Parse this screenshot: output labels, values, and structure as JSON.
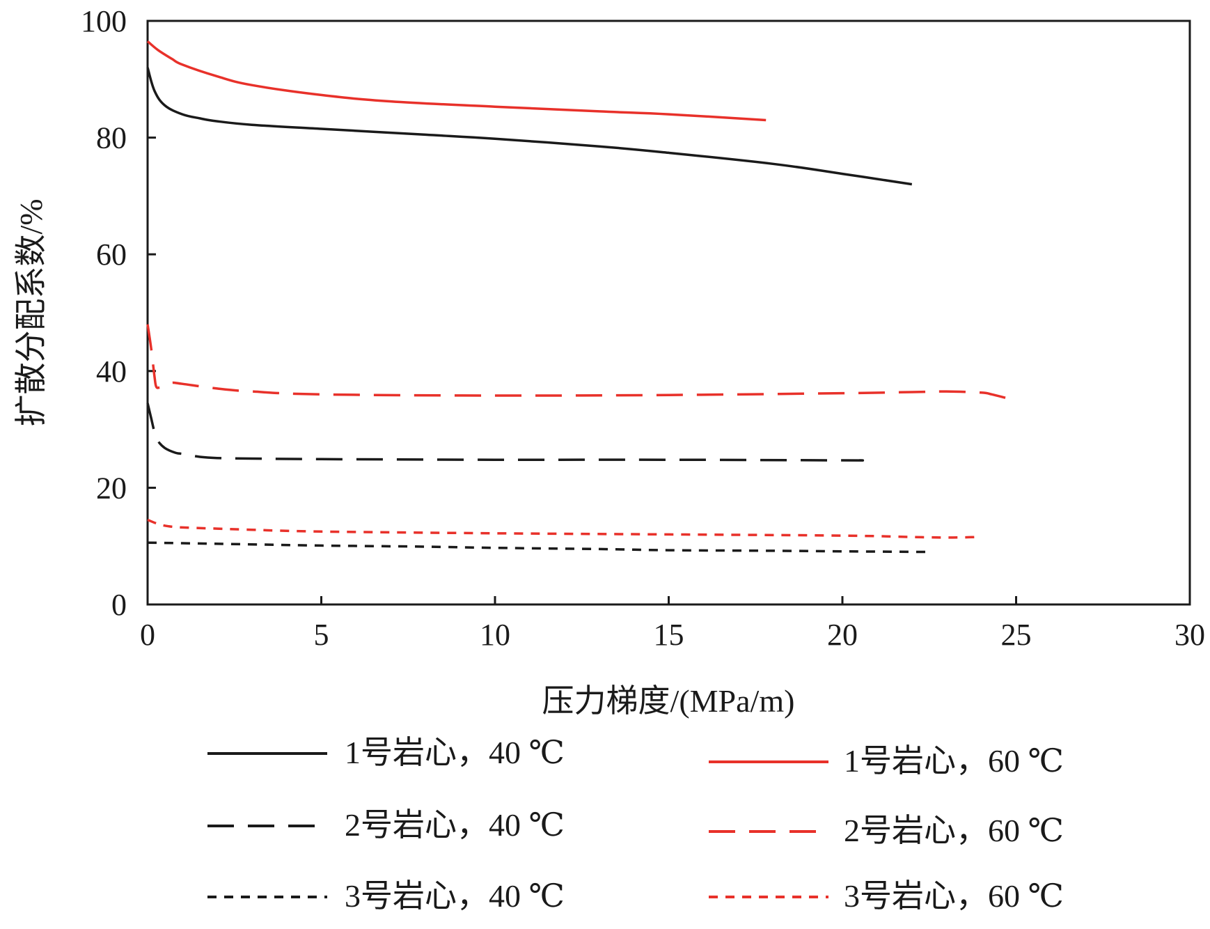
{
  "chart_data": {
    "type": "line",
    "title": "",
    "xlabel": "压力梯度/(MPa/m)",
    "ylabel": "扩散分配系数/%",
    "xlim": [
      0,
      30
    ],
    "ylim": [
      0,
      100
    ],
    "xticks": [
      "0",
      "5",
      "10",
      "15",
      "20",
      "25",
      "30"
    ],
    "yticks": [
      "0",
      "20",
      "40",
      "60",
      "80",
      "100"
    ],
    "grid": false,
    "legend_position": "bottom",
    "colors": {
      "black": "#1a1a1a",
      "red": "#e8312a"
    },
    "series": [
      {
        "name": "1号岩心，40 ℃",
        "color": "#1a1a1a",
        "dash": "solid",
        "x": [
          0,
          0.2,
          0.5,
          1,
          1.5,
          2,
          3,
          5,
          8,
          10,
          13,
          15,
          18,
          20,
          22
        ],
        "y": [
          92,
          88,
          85.5,
          84,
          83.3,
          82.8,
          82.2,
          81.5,
          80.5,
          79.8,
          78.5,
          77.4,
          75.5,
          73.8,
          72
        ]
      },
      {
        "name": "1号岩心，60 ℃",
        "color": "#e8312a",
        "dash": "solid",
        "x": [
          0,
          0.3,
          0.7,
          1,
          2,
          3,
          5,
          7,
          10,
          13,
          15,
          17.8
        ],
        "y": [
          96.5,
          95,
          93.5,
          92.5,
          90.5,
          89,
          87.3,
          86.2,
          85.3,
          84.5,
          84,
          83
        ]
      },
      {
        "name": "2号岩心，40 ℃",
        "color": "#1a1a1a",
        "dash": "long",
        "x": [
          0,
          0.1,
          0.2,
          0.3,
          0.5,
          0.8,
          1,
          1.5,
          2,
          3,
          5,
          10,
          15,
          20,
          20.5
        ],
        "y": [
          34.5,
          32,
          29.5,
          28,
          26.8,
          26,
          25.8,
          25.3,
          25.1,
          25,
          24.9,
          24.8,
          24.8,
          24.7,
          24.7
        ]
      },
      {
        "name": "2号岩心，60 ℃",
        "color": "#e8312a",
        "dash": "long",
        "x": [
          0,
          0.1,
          0.2,
          0.25,
          0.35,
          0.5,
          0.7,
          1,
          2,
          3,
          5,
          10,
          15,
          20,
          22,
          23,
          24,
          24.3,
          24.7
        ],
        "y": [
          48,
          44,
          39,
          37.3,
          37.2,
          37.6,
          38,
          37.8,
          37,
          36.5,
          36,
          35.8,
          35.9,
          36.2,
          36.4,
          36.5,
          36.3,
          36,
          35.4
        ]
      },
      {
        "name": "3号岩心，40 ℃",
        "color": "#1a1a1a",
        "dash": "short",
        "x": [
          0,
          1,
          3,
          5,
          8,
          10,
          13,
          15,
          18,
          20,
          22.5
        ],
        "y": [
          10.6,
          10.5,
          10.3,
          10.1,
          9.9,
          9.7,
          9.5,
          9.3,
          9.2,
          9.1,
          9
        ]
      },
      {
        "name": "3号岩心，60 ℃",
        "color": "#e8312a",
        "dash": "short",
        "x": [
          0,
          0.3,
          0.6,
          1,
          2,
          3,
          5,
          10,
          15,
          20,
          22.5,
          23.5,
          24
        ],
        "y": [
          14.5,
          13.8,
          13.4,
          13.2,
          13,
          12.8,
          12.5,
          12.2,
          12,
          11.8,
          11.5,
          11.5,
          11.6
        ]
      }
    ]
  }
}
